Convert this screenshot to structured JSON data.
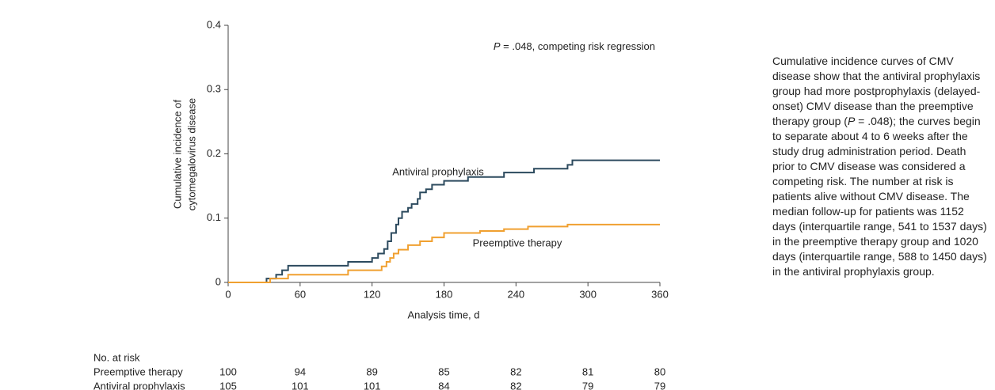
{
  "chart_data": {
    "type": "step",
    "y_label": [
      "Cumulative incidence of",
      "cytomegalovirus disease"
    ],
    "x_label": "Analysis time, d",
    "annotation": [
      "P",
      " = .048, competing risk regression"
    ],
    "xlim": [
      0,
      360
    ],
    "xticks": [
      0,
      60,
      120,
      180,
      240,
      300,
      360
    ],
    "ylim": [
      0,
      0.4
    ],
    "yticks": [
      0,
      0.1,
      0.2,
      0.3,
      0.4
    ],
    "series": [
      {
        "name": "Antiviral prophylaxis",
        "color": "#2c4a5e",
        "x": [
          0,
          32,
          40,
          45,
          50,
          100,
          120,
          125,
          130,
          133,
          136,
          140,
          142,
          145,
          150,
          153,
          158,
          160,
          165,
          170,
          180,
          200,
          230,
          255,
          283,
          287,
          360
        ],
        "values": [
          0,
          0.006,
          0.012,
          0.019,
          0.026,
          0.032,
          0.038,
          0.045,
          0.052,
          0.064,
          0.077,
          0.09,
          0.1,
          0.11,
          0.116,
          0.122,
          0.13,
          0.14,
          0.145,
          0.152,
          0.158,
          0.164,
          0.171,
          0.177,
          0.183,
          0.19,
          0.19
        ]
      },
      {
        "name": "Preemptive therapy",
        "color": "#f0a030",
        "x": [
          0,
          35,
          50,
          100,
          128,
          132,
          135,
          138,
          142,
          150,
          160,
          170,
          180,
          210,
          230,
          250,
          283,
          360
        ],
        "values": [
          0,
          0.006,
          0.012,
          0.019,
          0.025,
          0.032,
          0.038,
          0.045,
          0.051,
          0.058,
          0.064,
          0.07,
          0.077,
          0.08,
          0.083,
          0.087,
          0.09,
          0.09
        ]
      }
    ],
    "risk_table": {
      "title": "No. at risk",
      "rows": [
        {
          "label": "Preemptive therapy",
          "values": [
            100,
            94,
            89,
            85,
            82,
            81,
            80
          ]
        },
        {
          "label": "Antiviral prophylaxis",
          "values": [
            105,
            101,
            101,
            84,
            82,
            79,
            79
          ]
        }
      ]
    }
  },
  "caption": [
    "Cumulative incidence curves of CMV disease show that the antiviral prophylaxis group had more postprophylaxis (delayed-onset) CMV disease than the preemptive therapy group (",
    "P",
    " = .048); the curves begin to separate about 4 to 6 weeks after the study drug administration period. Death prior to CMV disease was considered a competing risk. The number at risk is patients alive without CMV disease. The median follow-up for patients was 1152 days (interquartile range, 541 to 1537 days) in the preemptive therapy group and 1020 days (interquartile range, 588 to 1450 days) in the antiviral prophylaxis group."
  ]
}
